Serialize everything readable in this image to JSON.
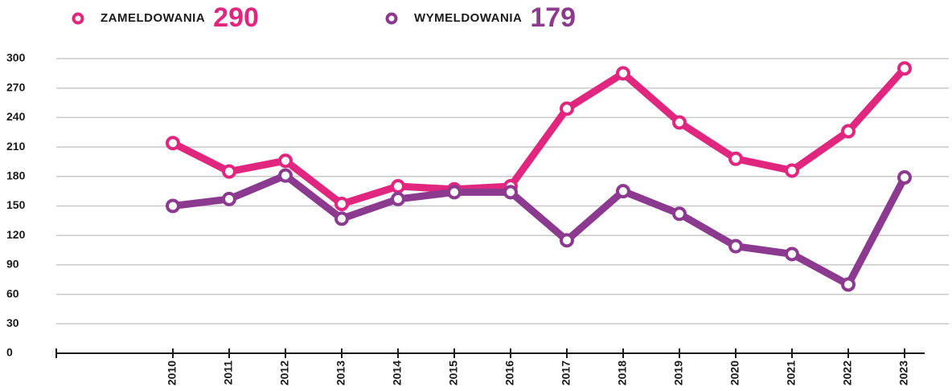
{
  "chart_data": {
    "type": "line",
    "categories": [
      "2010",
      "2011",
      "2012",
      "2013",
      "2014",
      "2015",
      "2016",
      "2017",
      "2018",
      "2019",
      "2020",
      "2021",
      "2022",
      "2023"
    ],
    "series": [
      {
        "name": "ZAMELDOWANIA",
        "color": "#e0267f",
        "values": [
          214,
          185,
          196,
          152,
          170,
          167,
          170,
          249,
          285,
          235,
          198,
          186,
          226,
          290
        ]
      },
      {
        "name": "WYMELDOWANIA",
        "color": "#8b3a8f",
        "values": [
          150,
          157,
          181,
          137,
          157,
          164,
          164,
          115,
          165,
          142,
          109,
          101,
          70,
          179
        ]
      }
    ],
    "ylim": [
      0,
      300
    ],
    "yticks": [
      0,
      30,
      60,
      90,
      120,
      150,
      180,
      210,
      240,
      270,
      300
    ],
    "grid": true
  }
}
